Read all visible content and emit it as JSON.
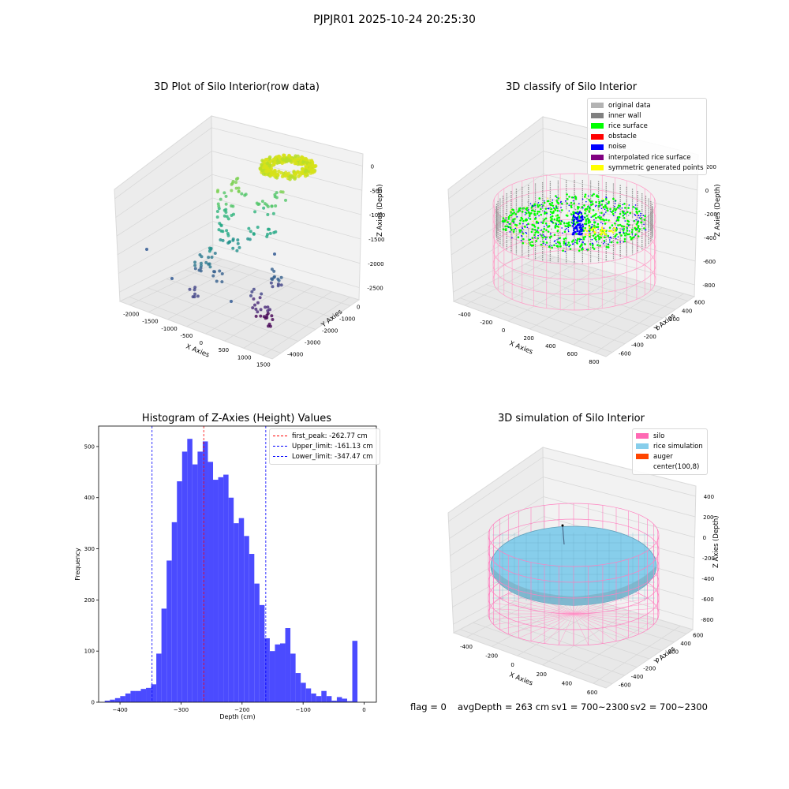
{
  "suptitle": "PJPJR01 2025-10-24 20:25:30",
  "panels": {
    "raw": {
      "title": "3D Plot of Silo Interior(row data)",
      "xlabel": "X Axies",
      "ylabel": "Y Axies",
      "zlabel": "Z Axies (Depth)",
      "xticks": [
        "-2000",
        "-1500",
        "-1000",
        "-500",
        "0",
        "500",
        "1000",
        "1500"
      ],
      "yticks": [
        "-4000",
        "-3000",
        "-2000",
        "-1000",
        "0"
      ],
      "zticks": [
        "0",
        "-500",
        "-1000",
        "-1500",
        "-2000",
        "-2500"
      ]
    },
    "classify": {
      "title": "3D classify of Silo Interior",
      "xlabel": "X Axies",
      "ylabel": "Y Axies",
      "zlabel": "Z Axies (Depth)",
      "xticks": [
        "-400",
        "-200",
        "0",
        "200",
        "400",
        "600",
        "800"
      ],
      "yticks": [
        "-600",
        "-400",
        "-200",
        "0",
        "200",
        "400",
        "600"
      ],
      "zticks": [
        "200",
        "0",
        "-200",
        "-400",
        "-600",
        "-800"
      ],
      "legend": [
        {
          "label": "original data",
          "color": "#b3b3b3"
        },
        {
          "label": "inner wall",
          "color": "#808080"
        },
        {
          "label": "rice surface",
          "color": "#00ff00"
        },
        {
          "label": "obstacle",
          "color": "#ff0000"
        },
        {
          "label": "noise",
          "color": "#0000ff"
        },
        {
          "label": "interpolated rice surface",
          "color": "#800080"
        },
        {
          "label": "symmetric generated points",
          "color": "#ffff00"
        }
      ]
    },
    "simulation": {
      "title": "3D simulation of Silo Interior",
      "xlabel": "X Axies",
      "ylabel": "Y Axies",
      "zlabel": "Z Axies (Depth)",
      "xticks": [
        "-400",
        "-200",
        "0",
        "200",
        "400",
        "600"
      ],
      "yticks": [
        "-600",
        "-400",
        "-200",
        "0",
        "200",
        "400",
        "600"
      ],
      "zticks": [
        "400",
        "200",
        "0",
        "-200",
        "-400",
        "-600",
        "-800"
      ],
      "legend": [
        {
          "label": "silo",
          "color": "#ff69b4"
        },
        {
          "label": "rice simulation",
          "color": "#87ceeb"
        },
        {
          "label": "auger",
          "color": "#ff4500"
        },
        {
          "label": "center(100,8)",
          "color": "#ffffff"
        }
      ]
    }
  },
  "footer": {
    "flag": "flag = 0",
    "avg_depth": "avgDepth = 263 cm",
    "sv1": "sv1 = 700~2300",
    "sv2": "sv2 = 700~2300"
  },
  "chart_data": {
    "type": "bar",
    "title": "Histogram of Z-Axies (Height) Values",
    "xlabel": "Depth (cm)",
    "ylabel": "Frequency",
    "xlim": [
      -435,
      20
    ],
    "ylim": [
      0,
      540
    ],
    "xticks": [
      -400,
      -300,
      -200,
      -100,
      0
    ],
    "yticks": [
      0,
      100,
      200,
      300,
      400,
      500
    ],
    "bar_color": "#4b4bff",
    "bin_start": -425,
    "bin_width": 8.45,
    "values": [
      3,
      5,
      8,
      12,
      17,
      22,
      22,
      26,
      28,
      35,
      95,
      183,
      277,
      352,
      432,
      490,
      515,
      465,
      490,
      510,
      470,
      435,
      440,
      445,
      400,
      350,
      360,
      325,
      290,
      232,
      190,
      125,
      100,
      113,
      115,
      145,
      95,
      57,
      38,
      27,
      17,
      12,
      22,
      12,
      3,
      10,
      7,
      2,
      120
    ],
    "vlines": [
      {
        "label": "first_peak: -262.77 cm",
        "x": -262.77,
        "color": "#ff0000"
      },
      {
        "label": "Upper_limit: -161.13 cm",
        "x": -161.13,
        "color": "#0000ff"
      },
      {
        "label": "Lower_limit: -347.47 cm",
        "x": -347.47,
        "color": "#0000ff"
      }
    ]
  }
}
